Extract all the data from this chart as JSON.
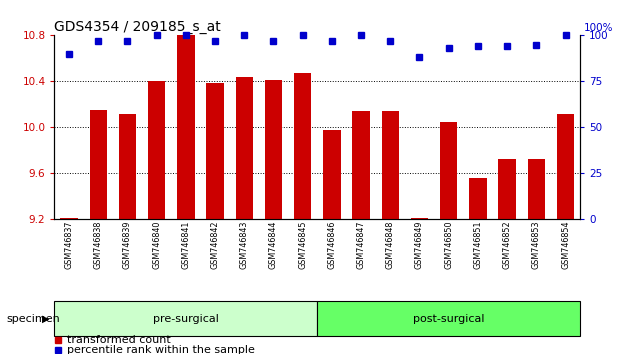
{
  "title": "GDS4354 / 209185_s_at",
  "categories": [
    "GSM746837",
    "GSM746838",
    "GSM746839",
    "GSM746840",
    "GSM746841",
    "GSM746842",
    "GSM746843",
    "GSM746844",
    "GSM746845",
    "GSM746846",
    "GSM746847",
    "GSM746848",
    "GSM746849",
    "GSM746850",
    "GSM746851",
    "GSM746852",
    "GSM746853",
    "GSM746854"
  ],
  "bar_values": [
    9.21,
    10.15,
    10.12,
    10.4,
    10.8,
    10.39,
    10.44,
    10.41,
    10.47,
    9.98,
    10.14,
    10.14,
    9.21,
    10.05,
    9.56,
    9.73,
    9.73,
    10.12
  ],
  "percentile_values": [
    90,
    97,
    97,
    100,
    100,
    97,
    100,
    97,
    100,
    97,
    100,
    97,
    88,
    93,
    94,
    94,
    95,
    100
  ],
  "bar_color": "#CC0000",
  "dot_color": "#0000CC",
  "ylim_left": [
    9.2,
    10.8
  ],
  "ylim_right": [
    0,
    100
  ],
  "yticks_left": [
    9.2,
    9.6,
    10.0,
    10.4,
    10.8
  ],
  "yticks_right": [
    0,
    25,
    50,
    75,
    100
  ],
  "pre_surgical_count": 9,
  "group_labels": [
    "pre-surgical",
    "post-surgical"
  ],
  "group_color_pre": "#CCFFCC",
  "group_color_post": "#66FF66",
  "legend_bar_label": "transformed count",
  "legend_dot_label": "percentile rank within the sample",
  "title_fontsize": 10,
  "tick_fontsize": 7.5,
  "bar_width": 0.6,
  "right_axis_label": "100%"
}
